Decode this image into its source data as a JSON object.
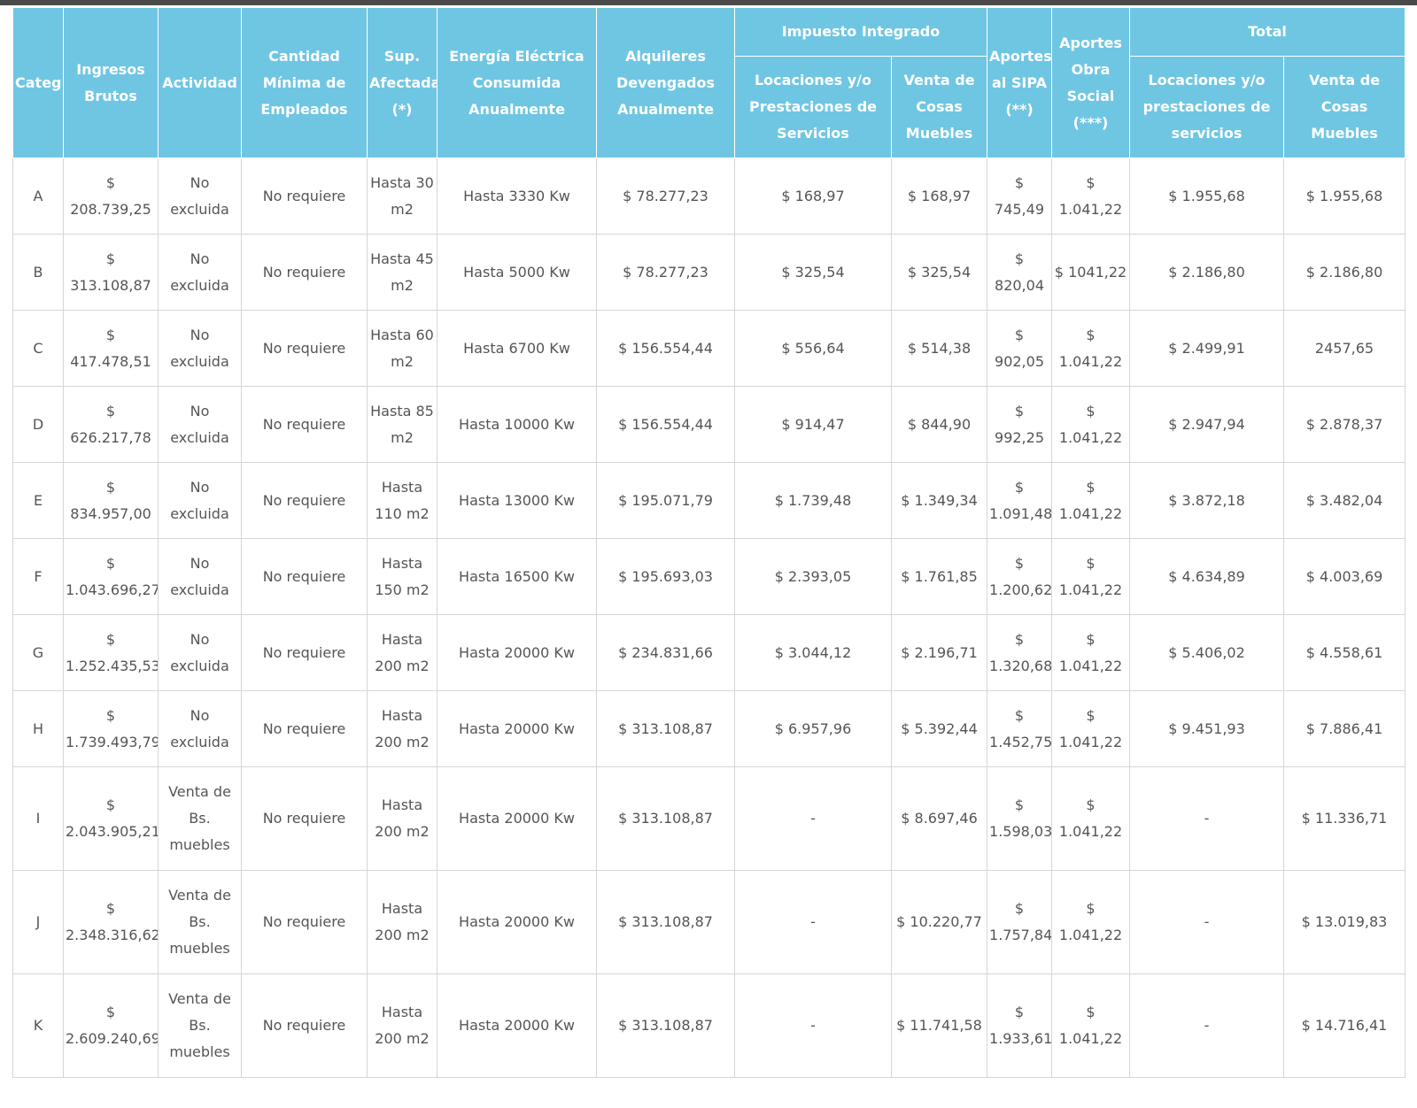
{
  "table": {
    "headers": {
      "categ": "Categ.",
      "ingresos": "Ingresos Brutos",
      "actividad": "Actividad",
      "empleados": "Cantidad Mínima de Empleados",
      "superficie": "Sup. Afectada (*)",
      "energia": "Energía Eléctrica Consumida Anualmente",
      "alquileres": "Alquileres Devengados Anualmente",
      "impuesto_group": "Impuesto Integrado",
      "impuesto_locaciones": "Locaciones y/o Prestaciones de Servicios",
      "impuesto_venta": "Venta de Cosas Muebles",
      "sipa": "Aportes al SIPA (**)",
      "obra_social": "Aportes Obra Social (***)",
      "total_group": "Total",
      "total_locaciones": "Locaciones y/o prestaciones de servicios",
      "total_venta": "Venta de Cosas Muebles"
    },
    "rows": [
      {
        "categ": "A",
        "ingresos": "$ 208.739,25",
        "actividad": "No excluida",
        "empleados": "No requiere",
        "superficie": "Hasta 30 m2",
        "energia": "Hasta 3330 Kw",
        "alquileres": "$ 78.277,23",
        "imp_locaciones": "$ 168,97",
        "imp_venta": "$ 168,97",
        "sipa": "$ 745,49",
        "obra_social": "$ 1.041,22",
        "total_locaciones": "$ 1.955,68",
        "total_venta": "$ 1.955,68"
      },
      {
        "categ": "B",
        "ingresos": "$ 313.108,87",
        "actividad": "No excluida",
        "empleados": "No requiere",
        "superficie": "Hasta 45 m2",
        "energia": "Hasta 5000 Kw",
        "alquileres": "$ 78.277,23",
        "imp_locaciones": "$ 325,54",
        "imp_venta": "$ 325,54",
        "sipa": "$ 820,04",
        "obra_social": "$ 1041,22",
        "total_locaciones": "$ 2.186,80",
        "total_venta": "$ 2.186,80"
      },
      {
        "categ": "C",
        "ingresos": "$ 417.478,51",
        "actividad": "No excluida",
        "empleados": "No requiere",
        "superficie": "Hasta 60 m2",
        "energia": "Hasta 6700 Kw",
        "alquileres": "$ 156.554,44",
        "imp_locaciones": "$ 556,64",
        "imp_venta": "$ 514,38",
        "sipa": "$ 902,05",
        "obra_social": "$ 1.041,22",
        "total_locaciones": "$ 2.499,91",
        "total_venta": "2457,65"
      },
      {
        "categ": "D",
        "ingresos": "$ 626.217,78",
        "actividad": "No excluida",
        "empleados": "No requiere",
        "superficie": "Hasta 85 m2",
        "energia": "Hasta 10000 Kw",
        "alquileres": "$ 156.554,44",
        "imp_locaciones": "$ 914,47",
        "imp_venta": "$ 844,90",
        "sipa": "$ 992,25",
        "obra_social": "$ 1.041,22",
        "total_locaciones": "$ 2.947,94",
        "total_venta": "$ 2.878,37"
      },
      {
        "categ": "E",
        "ingresos": "$ 834.957,00",
        "actividad": "No excluida",
        "empleados": "No requiere",
        "superficie": "Hasta 110 m2",
        "energia": "Hasta 13000 Kw",
        "alquileres": "$ 195.071,79",
        "imp_locaciones": "$ 1.739,48",
        "imp_venta": "$ 1.349,34",
        "sipa": "$ 1.091,48",
        "obra_social": "$ 1.041,22",
        "total_locaciones": "$ 3.872,18",
        "total_venta": "$ 3.482,04"
      },
      {
        "categ": "F",
        "ingresos": "$ 1.043.696,27",
        "actividad": "No excluida",
        "empleados": "No requiere",
        "superficie": "Hasta 150 m2",
        "energia": "Hasta 16500 Kw",
        "alquileres": "$ 195.693,03",
        "imp_locaciones": "$ 2.393,05",
        "imp_venta": "$ 1.761,85",
        "sipa": "$ 1.200,62",
        "obra_social": "$ 1.041,22",
        "total_locaciones": "$ 4.634,89",
        "total_venta": "$ 4.003,69"
      },
      {
        "categ": "G",
        "ingresos": "$ 1.252.435,53",
        "actividad": "No excluida",
        "empleados": "No requiere",
        "superficie": "Hasta 200 m2",
        "energia": "Hasta 20000 Kw",
        "alquileres": "$ 234.831,66",
        "imp_locaciones": "$ 3.044,12",
        "imp_venta": "$ 2.196,71",
        "sipa": "$ 1.320,68",
        "obra_social": "$ 1.041,22",
        "total_locaciones": "$ 5.406,02",
        "total_venta": "$ 4.558,61"
      },
      {
        "categ": "H",
        "ingresos": "$ 1.739.493,79",
        "actividad": "No excluida",
        "empleados": "No requiere",
        "superficie": "Hasta 200 m2",
        "energia": "Hasta 20000 Kw",
        "alquileres": "$ 313.108,87",
        "imp_locaciones": "$ 6.957,96",
        "imp_venta": "$ 5.392,44",
        "sipa": "$ 1.452,75",
        "obra_social": "$ 1.041,22",
        "total_locaciones": "$ 9.451,93",
        "total_venta": "$ 7.886,41"
      },
      {
        "categ": "I",
        "ingresos": "$ 2.043.905,21",
        "actividad": "Venta de Bs. muebles",
        "empleados": "No requiere",
        "superficie": "Hasta 200 m2",
        "energia": "Hasta 20000 Kw",
        "alquileres": "$ 313.108,87",
        "imp_locaciones": "-",
        "imp_venta": "$ 8.697,46",
        "sipa": "$ 1.598,03",
        "obra_social": "$ 1.041,22",
        "total_locaciones": "-",
        "total_venta": "$ 11.336,71"
      },
      {
        "categ": "J",
        "ingresos": "$ 2.348.316,62",
        "actividad": "Venta de Bs. muebles",
        "empleados": "No requiere",
        "superficie": "Hasta 200 m2",
        "energia": "Hasta 20000 Kw",
        "alquileres": "$ 313.108,87",
        "imp_locaciones": "-",
        "imp_venta": "$ 10.220,77",
        "sipa": "$ 1.757,84",
        "obra_social": "$ 1.041,22",
        "total_locaciones": "-",
        "total_venta": "$ 13.019,83"
      },
      {
        "categ": "K",
        "ingresos": "$ 2.609.240,69",
        "actividad": "Venta de Bs. muebles",
        "empleados": "No requiere",
        "superficie": "Hasta 200 m2",
        "energia": "Hasta 20000 Kw",
        "alquileres": "$ 313.108,87",
        "imp_locaciones": "-",
        "imp_venta": "$ 11.741,58",
        "sipa": "$ 1.933,61",
        "obra_social": "$ 1.041,22",
        "total_locaciones": "-",
        "total_venta": "$ 14.716,41"
      }
    ]
  }
}
